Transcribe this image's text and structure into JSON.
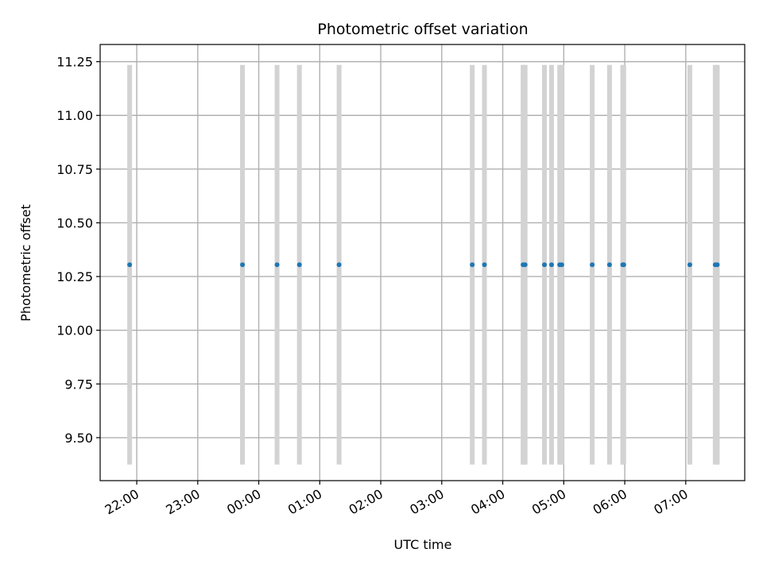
{
  "chart_data": {
    "type": "scatter",
    "title": "Photometric offset variation",
    "xlabel": "UTC time",
    "ylabel": "Photometric offset",
    "grid": true,
    "x_tick_labels": [
      "22:00",
      "23:00",
      "00:00",
      "01:00",
      "02:00",
      "03:00",
      "04:00",
      "05:00",
      "06:00",
      "07:00"
    ],
    "y_tick_labels": [
      "9.50",
      "9.75",
      "10.00",
      "10.25",
      "10.50",
      "10.75",
      "11.00",
      "11.25"
    ],
    "xlim": [
      "21:24",
      "07:58"
    ],
    "ylim": [
      9.3,
      11.33
    ],
    "series": [
      {
        "x": [
          "21:53",
          "23:44",
          "00:18",
          "00:40",
          "01:19",
          "03:30",
          "03:42",
          "04:20",
          "04:22",
          "04:41",
          "04:48",
          "04:56",
          "04:58",
          "05:28",
          "05:45",
          "05:58",
          "05:59",
          "07:04",
          "07:29",
          "07:31"
        ],
        "y": [
          10.305,
          10.305,
          10.305,
          10.305,
          10.305,
          10.305,
          10.305,
          10.305,
          10.305,
          10.305,
          10.305,
          10.305,
          10.305,
          10.305,
          10.305,
          10.305,
          10.305,
          10.305,
          10.305,
          10.305
        ],
        "range_low": 9.375,
        "range_high": 11.235,
        "color": "#1f77b4",
        "range_color": "#d3d3d3"
      }
    ]
  }
}
